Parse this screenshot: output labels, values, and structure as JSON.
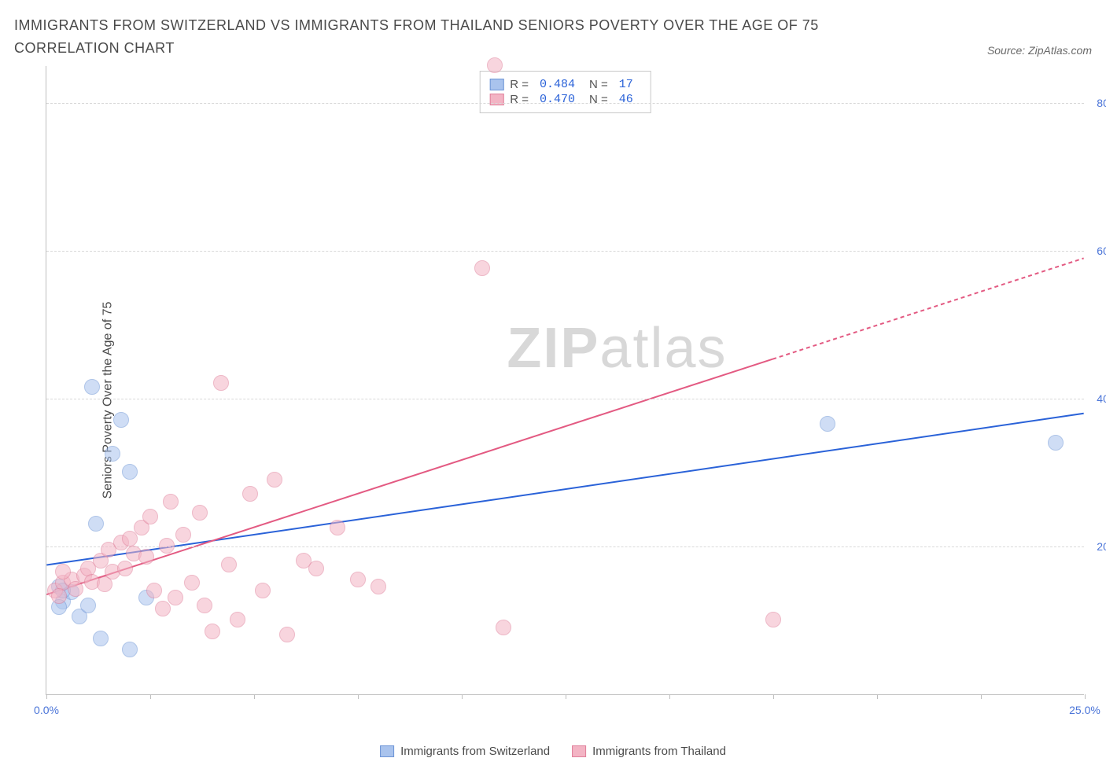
{
  "title": "IMMIGRANTS FROM SWITZERLAND VS IMMIGRANTS FROM THAILAND SENIORS POVERTY OVER THE AGE OF 75 CORRELATION CHART",
  "source": "Source: ZipAtlas.com",
  "ylabel": "Seniors Poverty Over the Age of 75",
  "watermark_a": "ZIP",
  "watermark_b": "atlas",
  "chart": {
    "type": "scatter",
    "background_color": "#ffffff",
    "grid_color": "#d9d9d9",
    "axis_color": "#bfbfbf",
    "tick_label_color": "#4a74d8",
    "xlim": [
      0,
      25
    ],
    "ylim": [
      0,
      85
    ],
    "xticks": [
      0,
      2.5,
      5,
      7.5,
      10,
      12.5,
      15,
      17.5,
      20,
      22.5,
      25
    ],
    "xtick_labels": {
      "0": "0.0%",
      "25": "25.0%"
    },
    "yticks": [
      20,
      40,
      60,
      80
    ],
    "ytick_labels": {
      "20": "20.0%",
      "40": "40.0%",
      "60": "60.0%",
      "80": "80.0%"
    },
    "series": [
      {
        "name": "Immigrants from Switzerland",
        "color_fill": "#a9c3ed",
        "color_stroke": "#6d95d6",
        "fill_opacity": 0.55,
        "marker_radius": 10,
        "R": "0.484",
        "N": "17",
        "trend": {
          "x1": 0,
          "y1": 17.5,
          "x2": 25,
          "y2": 38,
          "color": "#2a62d8",
          "width": 2,
          "dash_from_x": 25
        },
        "points": [
          [
            0.3,
            14.5
          ],
          [
            0.4,
            12.5
          ],
          [
            0.3,
            11.8
          ],
          [
            0.6,
            13.8
          ],
          [
            0.8,
            10.5
          ],
          [
            1.0,
            12.0
          ],
          [
            1.2,
            23.0
          ],
          [
            1.1,
            41.5
          ],
          [
            1.6,
            32.5
          ],
          [
            1.8,
            37.0
          ],
          [
            2.0,
            30.0
          ],
          [
            2.4,
            13.0
          ],
          [
            1.3,
            7.5
          ],
          [
            2.0,
            6.0
          ],
          [
            18.8,
            36.5
          ],
          [
            24.3,
            34.0
          ],
          [
            0.4,
            14.0
          ]
        ]
      },
      {
        "name": "Immigrants from Thailand",
        "color_fill": "#f3b4c4",
        "color_stroke": "#e07f9a",
        "fill_opacity": 0.55,
        "marker_radius": 10,
        "R": "0.470",
        "N": "46",
        "trend": {
          "x1": 0,
          "y1": 13.5,
          "x2": 25,
          "y2": 59,
          "color": "#e35a82",
          "width": 2,
          "dash_from_x": 17.5
        },
        "points": [
          [
            0.2,
            14.0
          ],
          [
            0.4,
            15.0
          ],
          [
            0.6,
            15.5
          ],
          [
            0.7,
            14.2
          ],
          [
            0.9,
            16.0
          ],
          [
            0.4,
            16.5
          ],
          [
            1.0,
            17.0
          ],
          [
            1.1,
            15.2
          ],
          [
            1.3,
            18.0
          ],
          [
            1.4,
            14.8
          ],
          [
            1.5,
            19.5
          ],
          [
            1.6,
            16.5
          ],
          [
            1.8,
            20.5
          ],
          [
            1.9,
            17.0
          ],
          [
            2.0,
            21.0
          ],
          [
            2.1,
            19.0
          ],
          [
            2.3,
            22.5
          ],
          [
            2.4,
            18.5
          ],
          [
            2.5,
            24.0
          ],
          [
            2.6,
            14.0
          ],
          [
            2.8,
            11.5
          ],
          [
            2.9,
            20.0
          ],
          [
            3.0,
            26.0
          ],
          [
            3.1,
            13.0
          ],
          [
            3.3,
            21.5
          ],
          [
            3.5,
            15.0
          ],
          [
            3.7,
            24.5
          ],
          [
            3.8,
            12.0
          ],
          [
            4.0,
            8.5
          ],
          [
            4.2,
            42.0
          ],
          [
            4.4,
            17.5
          ],
          [
            4.6,
            10.0
          ],
          [
            4.9,
            27.0
          ],
          [
            5.2,
            14.0
          ],
          [
            5.5,
            29.0
          ],
          [
            5.8,
            8.0
          ],
          [
            6.2,
            18.0
          ],
          [
            6.5,
            17.0
          ],
          [
            7.0,
            22.5
          ],
          [
            7.5,
            15.5
          ],
          [
            8.0,
            14.5
          ],
          [
            10.5,
            57.5
          ],
          [
            10.8,
            85.0
          ],
          [
            11.0,
            9.0
          ],
          [
            17.5,
            10.0
          ],
          [
            0.3,
            13.2
          ]
        ]
      }
    ]
  },
  "legend_bottom": [
    {
      "label": "Immigrants from Switzerland",
      "fill": "#a9c3ed",
      "stroke": "#6d95d6"
    },
    {
      "label": "Immigrants from Thailand",
      "fill": "#f3b4c4",
      "stroke": "#e07f9a"
    }
  ]
}
